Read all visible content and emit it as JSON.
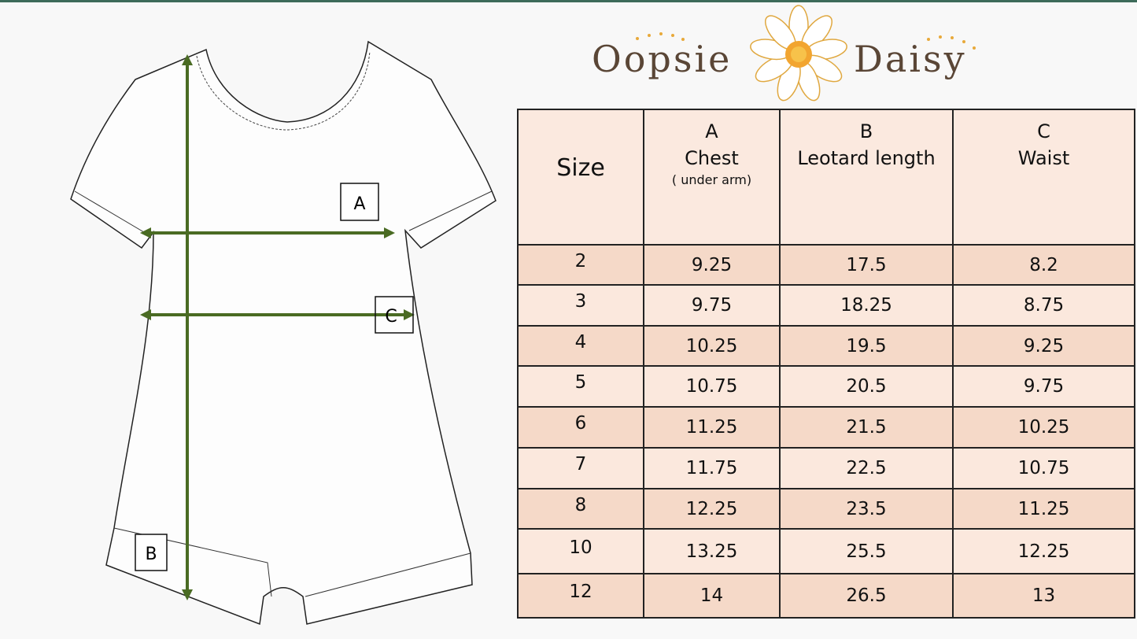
{
  "logo": {
    "left": "Oopsie",
    "right": "Daisy"
  },
  "diagram": {
    "labels": [
      "A",
      "B",
      "C"
    ]
  },
  "table": {
    "header": {
      "size": "Size",
      "columns": [
        {
          "letter": "A",
          "name": "Chest",
          "note": "( under arm)"
        },
        {
          "letter": "B",
          "name": "Leotard length"
        },
        {
          "letter": "C",
          "name": "Waist"
        }
      ]
    },
    "rows": [
      [
        "2",
        "9.25",
        "17.5",
        "8.2"
      ],
      [
        "3",
        "9.75",
        "18.25",
        "8.75"
      ],
      [
        "4",
        "10.25",
        "19.5",
        "9.25"
      ],
      [
        "5",
        "10.75",
        "20.5",
        "9.75"
      ],
      [
        "6",
        "11.25",
        "21.5",
        "10.25"
      ],
      [
        "7",
        "11.75",
        "22.5",
        "10.75"
      ],
      [
        "8",
        "12.25",
        "23.5",
        "11.25"
      ],
      [
        "10",
        "13.25",
        "25.5",
        "12.25"
      ],
      [
        "12",
        "14",
        "26.5",
        "13"
      ]
    ]
  }
}
